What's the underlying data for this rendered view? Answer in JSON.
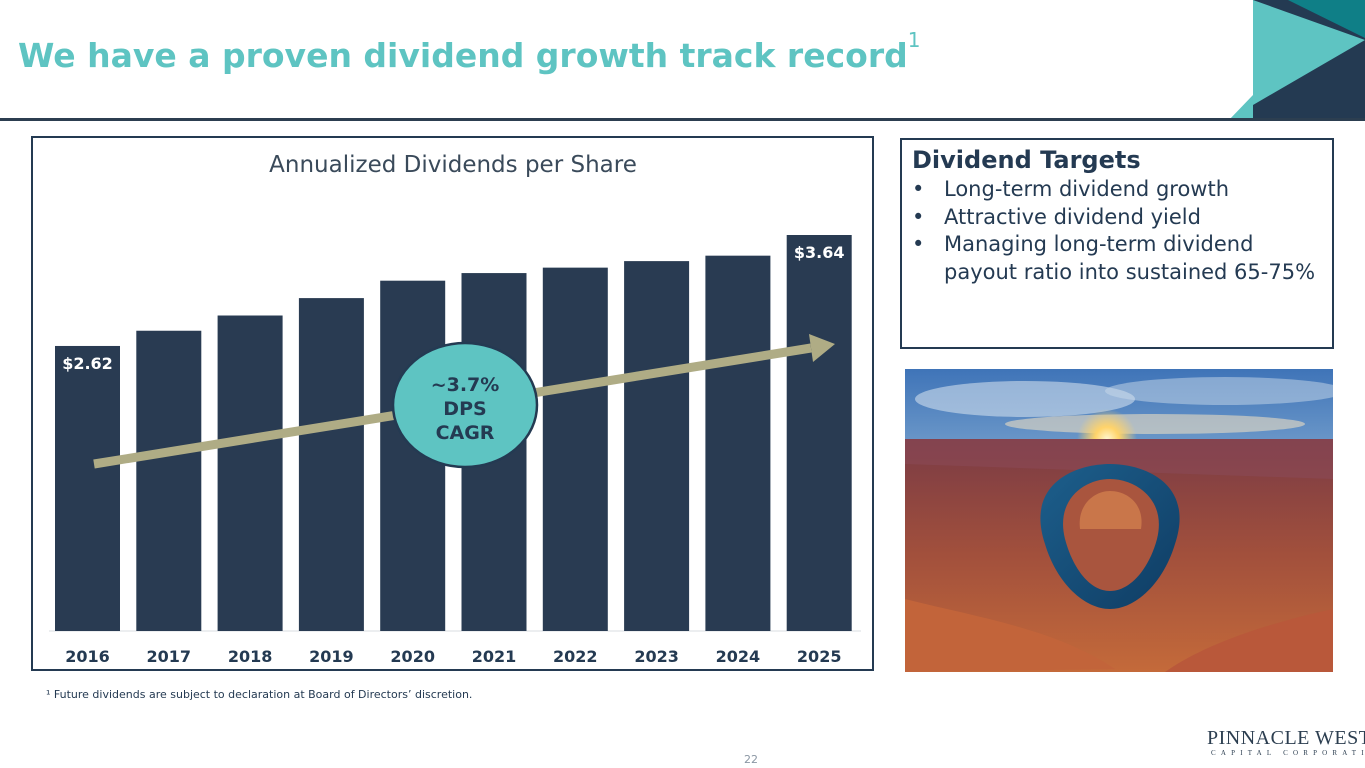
{
  "slide": {
    "title": "We have a proven dividend growth track record",
    "title_sup": "1",
    "footnote": "¹ Future dividends are subject to declaration at Board of Directors’ discretion.",
    "page_number": "22",
    "logo_main": "PINNACLE WEST",
    "logo_sub": "CAPITAL CORPORATION"
  },
  "targets": {
    "heading": "Dividend Targets",
    "items": [
      "Long-term dividend growth",
      "Attractive dividend yield",
      "Managing long-term dividend payout ratio into sustained 65-75%"
    ]
  },
  "photo": {
    "icon": "canyon-landscape-photo"
  },
  "colors": {
    "bar": "#293b52",
    "accent": "#5ec4c2",
    "arrow": "#afac85",
    "text": "#243a52"
  },
  "chart_data": {
    "type": "bar",
    "title": "Annualized Dividends per Share",
    "categories": [
      "2016",
      "2017",
      "2018",
      "2019",
      "2020",
      "2021",
      "2022",
      "2023",
      "2024",
      "2025"
    ],
    "values": [
      2.62,
      2.76,
      2.9,
      3.06,
      3.22,
      3.29,
      3.34,
      3.4,
      3.45,
      3.64
    ],
    "data_labels": {
      "first": "$2.62",
      "last": "$3.64"
    },
    "ylim": [
      0,
      3.64
    ],
    "xlabel": "",
    "ylabel": "",
    "annotation": {
      "line1": "~3.7%",
      "line2": "DPS",
      "line3": "CAGR"
    }
  }
}
